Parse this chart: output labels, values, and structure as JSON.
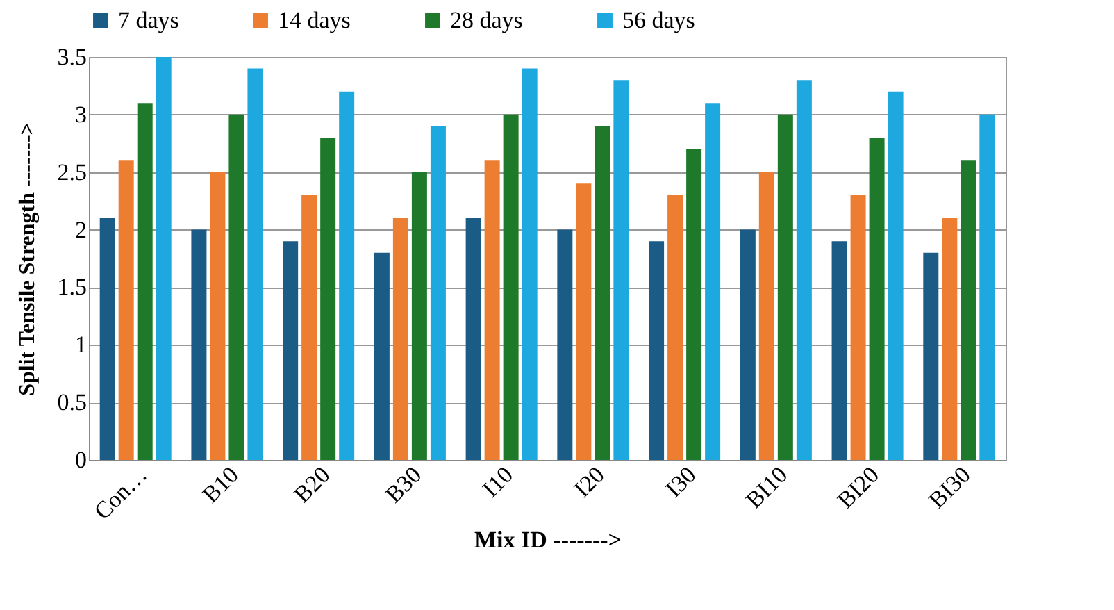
{
  "chart_data": {
    "type": "bar",
    "xlabel": "Mix ID ------->",
    "ylabel": "Split Tensile Strength ------->",
    "categories": [
      "Con…",
      "B10",
      "B20",
      "B30",
      "I10",
      "I20",
      "I30",
      "BI10",
      "BI20",
      "BI30"
    ],
    "series": [
      {
        "name": "7 days",
        "color": "#1b5c86",
        "values": [
          2.1,
          2.0,
          1.9,
          1.8,
          2.1,
          2.0,
          1.9,
          2.0,
          1.9,
          1.8
        ]
      },
      {
        "name": "14 days",
        "color": "#ed7d31",
        "values": [
          2.6,
          2.5,
          2.3,
          2.1,
          2.6,
          2.4,
          2.3,
          2.5,
          2.3,
          2.1
        ]
      },
      {
        "name": "28 days",
        "color": "#1e7a2a",
        "values": [
          3.1,
          3.0,
          2.8,
          2.5,
          3.0,
          2.9,
          2.7,
          3.0,
          2.8,
          2.6
        ]
      },
      {
        "name": "56 days",
        "color": "#1da8e0",
        "values": [
          3.5,
          3.4,
          3.2,
          2.9,
          3.4,
          3.3,
          3.1,
          3.3,
          3.2,
          3.0
        ]
      }
    ],
    "ylim": [
      0,
      3.5
    ],
    "yticks": [
      0,
      0.5,
      1,
      1.5,
      2,
      2.5,
      3,
      3.5
    ],
    "grid": "y",
    "legend": "top"
  }
}
